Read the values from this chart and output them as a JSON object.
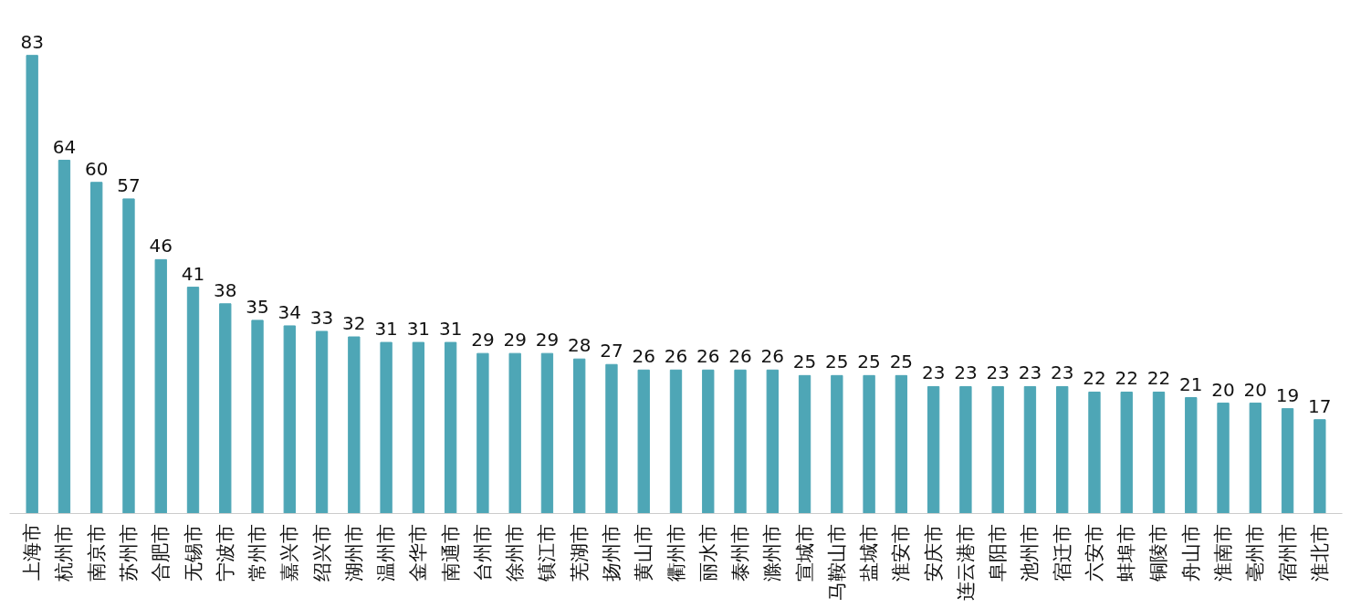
{
  "chart_data": {
    "type": "bar",
    "categories": [
      "上海市",
      "杭州市",
      "南京市",
      "苏州市",
      "合肥市",
      "无锡市",
      "宁波市",
      "常州市",
      "嘉兴市",
      "绍兴市",
      "湖州市",
      "温州市",
      "金华市",
      "南通市",
      "台州市",
      "徐州市",
      "镇江市",
      "芜湖市",
      "扬州市",
      "黄山市",
      "衢州市",
      "丽水市",
      "泰州市",
      "滁州市",
      "宣城市",
      "马鞍山市",
      "盐城市",
      "淮安市",
      "安庆市",
      "连云港市",
      "阜阳市",
      "池州市",
      "宿迁市",
      "六安市",
      "蚌埠市",
      "铜陵市",
      "舟山市",
      "淮南市",
      "亳州市",
      "宿州市",
      "淮北市"
    ],
    "values": [
      83,
      64,
      60,
      57,
      46,
      41,
      38,
      35,
      34,
      33,
      32,
      31,
      31,
      31,
      29,
      29,
      29,
      28,
      27,
      26,
      26,
      26,
      26,
      26,
      25,
      25,
      25,
      25,
      23,
      23,
      23,
      23,
      23,
      22,
      22,
      22,
      21,
      20,
      20,
      19,
      17
    ],
    "color": "#4ea6b6",
    "data_labels": true,
    "tick_labels": "x"
  }
}
